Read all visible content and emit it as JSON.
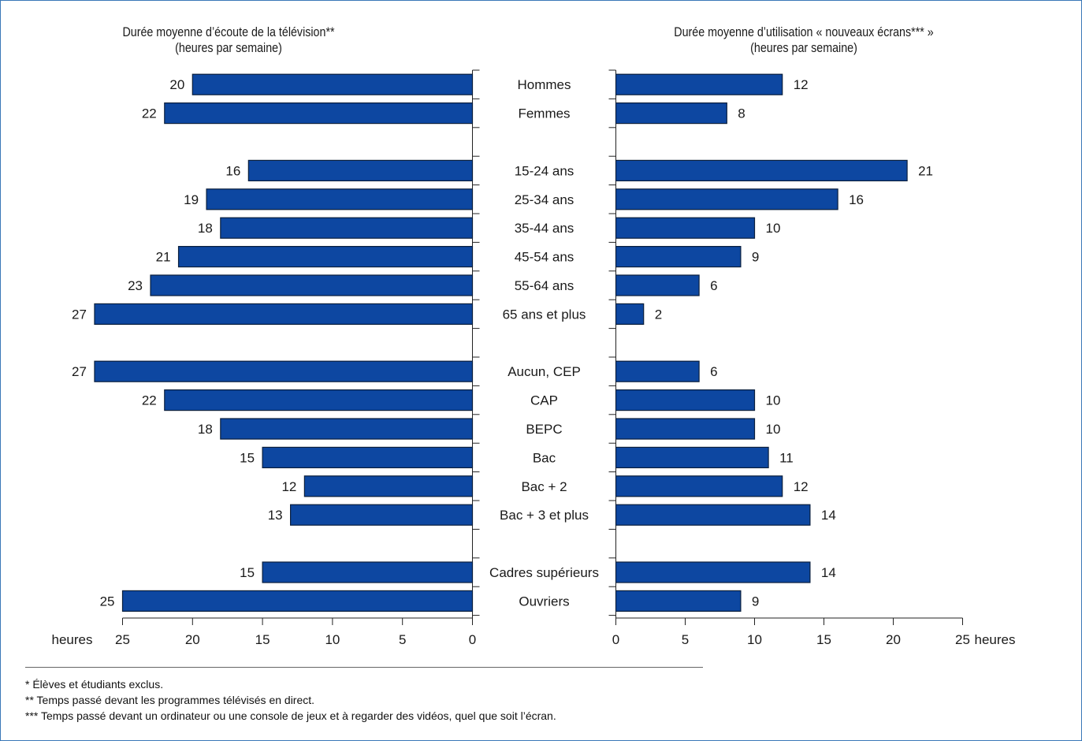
{
  "colors": {
    "bar": "#0d47a1",
    "bar_stroke": "#0a1f3d",
    "axis": "#222222",
    "frame": "#3a78b8"
  },
  "titles": {
    "left_line1": "Durée moyenne d’écoute de la télévision**",
    "left_line2": "(heures par semaine)",
    "right_line1": "Durée moyenne d’utilisation « nouveaux écrans*** »",
    "right_line2": "(heures par semaine)"
  },
  "footnotes": [
    "* Élèves et étudiants exclus.",
    "** Temps passé devant les programmes télévisés en direct.",
    "*** Temps passé devant un ordinateur ou une console de jeux et à regarder des vidéos, quel que soit l’écran."
  ],
  "chart_data": [
    {
      "type": "bar",
      "orientation": "horizontal",
      "direction": "right-to-left",
      "title": "Durée moyenne d’écoute de la télévision** (heures par semaine)",
      "xlabel": "heures",
      "xlim": [
        0,
        25
      ],
      "xticks": [
        25,
        20,
        15,
        10,
        5,
        0
      ],
      "categories": [
        "Hommes",
        "Femmes",
        "",
        "15-24 ans",
        "25-34 ans",
        "35-44 ans",
        "45-54 ans",
        "55-64 ans",
        "65 ans et plus",
        "",
        "Aucun, CEP",
        "CAP",
        "BEPC",
        "Bac",
        "Bac + 2",
        "Bac + 3 et plus",
        "",
        "Cadres supérieurs",
        "Ouvriers"
      ],
      "values": [
        20,
        22,
        null,
        16,
        19,
        18,
        21,
        23,
        27,
        null,
        27,
        22,
        18,
        15,
        12,
        13,
        null,
        15,
        25
      ]
    },
    {
      "type": "bar",
      "orientation": "horizontal",
      "direction": "left-to-right",
      "title": "Durée moyenne d’utilisation « nouveaux écrans*** » (heures par semaine)",
      "xlabel": "heures",
      "xlim": [
        0,
        25
      ],
      "xticks": [
        0,
        5,
        10,
        15,
        20,
        25
      ],
      "categories": [
        "Hommes",
        "Femmes",
        "",
        "15-24 ans",
        "25-34 ans",
        "35-44 ans",
        "45-54 ans",
        "55-64 ans",
        "65 ans et plus",
        "",
        "Aucun, CEP",
        "CAP",
        "BEPC",
        "Bac",
        "Bac + 2",
        "Bac + 3 et plus",
        "",
        "Cadres supérieurs",
        "Ouvriers"
      ],
      "values": [
        12,
        8,
        null,
        21,
        16,
        10,
        9,
        6,
        2,
        null,
        6,
        10,
        10,
        11,
        12,
        14,
        null,
        14,
        9
      ]
    }
  ]
}
